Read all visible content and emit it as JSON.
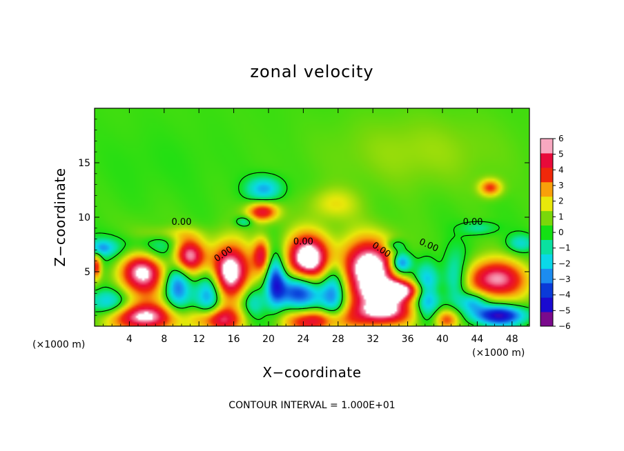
{
  "chart_data": {
    "type": "heatmap",
    "title": "zonal velocity",
    "xlabel": "X−coordinate",
    "ylabel": "Z−coordinate",
    "x_unit_left": "(×1000 m)",
    "x_unit_right": "(×1000 m)",
    "footer": "CONTOUR INTERVAL = 1.000E+01",
    "xlim": [
      0,
      50
    ],
    "ylim": [
      0,
      20
    ],
    "x_ticks": [
      4,
      8,
      12,
      16,
      20,
      24,
      28,
      32,
      36,
      40,
      44,
      48
    ],
    "y_ticks": [
      5,
      10,
      15
    ],
    "colorbar": {
      "ticks": [
        "6",
        "5",
        "4",
        "3",
        "2",
        "1",
        "0",
        "−1",
        "−2",
        "−3",
        "−4",
        "−5",
        "−6"
      ],
      "vmin": -6,
      "vmax": 6,
      "colors": [
        "#7a0a8c",
        "#1a0ad0",
        "#0a3ad8",
        "#1c8cf0",
        "#0ad8e8",
        "#0ae0a0",
        "#14e014",
        "#7ad80a",
        "#e8e80a",
        "#f8a00a",
        "#f0280a",
        "#e80a3a",
        "#f8a8c0"
      ],
      "background_value": 0.4
    },
    "contour_labels": [
      {
        "text": "0.00",
        "x": 10,
        "z": 9.3,
        "angle": 0
      },
      {
        "text": "0.00",
        "x": 15,
        "z": 6.4,
        "angle": -34
      },
      {
        "text": "0.00",
        "x": 24,
        "z": 7.5,
        "angle": 0
      },
      {
        "text": "0.00",
        "x": 32.8,
        "z": 6.8,
        "angle": 34
      },
      {
        "text": "0.00",
        "x": 38.3,
        "z": 7.2,
        "angle": 24
      },
      {
        "text": "0.00",
        "x": 43.5,
        "z": 9.3,
        "angle": 0
      }
    ],
    "field_features": [
      {
        "x": 5.5,
        "z": 5.5,
        "rx": 2.8,
        "rz": 2.6,
        "v": 7
      },
      {
        "x": 6.0,
        "z": 7.0,
        "rx": 4.2,
        "rz": 1.6,
        "v": -4.5
      },
      {
        "x": 5.5,
        "z": 0.8,
        "rx": 3.5,
        "rz": 1.3,
        "v": 6
      },
      {
        "x": 1.5,
        "z": 2.2,
        "rx": 2.2,
        "rz": 1.2,
        "v": -3
      },
      {
        "x": 10.7,
        "z": 6.5,
        "rx": 2.0,
        "rz": 1.7,
        "v": 6.5
      },
      {
        "x": 9.5,
        "z": 3.8,
        "rx": 1.5,
        "rz": 2.2,
        "v": -4
      },
      {
        "x": 13.2,
        "z": 3.0,
        "rx": 1.5,
        "rz": 2.4,
        "v": -4.5
      },
      {
        "x": 15.5,
        "z": 5.0,
        "rx": 2.4,
        "rz": 2.6,
        "v": 7
      },
      {
        "x": 14.0,
        "z": 0.6,
        "rx": 3.0,
        "rz": 1.2,
        "v": 5
      },
      {
        "x": 19.2,
        "z": 6.5,
        "rx": 1.0,
        "rz": 1.6,
        "v": 4
      },
      {
        "x": 20.8,
        "z": 4.2,
        "rx": 1.1,
        "rz": 2.4,
        "v": -4.5
      },
      {
        "x": 18.2,
        "z": 2.2,
        "rx": 1.3,
        "rz": 1.5,
        "v": -2
      },
      {
        "x": 19.3,
        "z": 10.5,
        "rx": 1.8,
        "rz": 0.9,
        "v": 4.5
      },
      {
        "x": 19.5,
        "z": 12.6,
        "rx": 2.0,
        "rz": 1.1,
        "v": -3
      },
      {
        "x": 17.2,
        "z": 9.6,
        "rx": 1.0,
        "rz": 0.5,
        "v": -2
      },
      {
        "x": 24.5,
        "z": 6.2,
        "rx": 2.6,
        "rz": 2.3,
        "v": 7
      },
      {
        "x": 23.5,
        "z": 3.2,
        "rx": 2.6,
        "rz": 1.6,
        "v": -5
      },
      {
        "x": 27.5,
        "z": 3.2,
        "rx": 1.5,
        "rz": 2.8,
        "v": -4.5
      },
      {
        "x": 25.5,
        "z": 0.5,
        "rx": 3.5,
        "rz": 1.1,
        "v": 5
      },
      {
        "x": 31.5,
        "z": 5.2,
        "rx": 3.5,
        "rz": 2.8,
        "v": 7
      },
      {
        "x": 33.0,
        "z": 1.4,
        "rx": 3.5,
        "rz": 1.5,
        "v": 6
      },
      {
        "x": 35.0,
        "z": 3.3,
        "rx": 3.5,
        "rz": 0.9,
        "v": 5
      },
      {
        "x": 35.2,
        "z": 5.8,
        "rx": 1.2,
        "rz": 1.0,
        "v": -5
      },
      {
        "x": 38.2,
        "z": 3.2,
        "rx": 1.4,
        "rz": 2.4,
        "v": -4
      },
      {
        "x": 41.5,
        "z": 4.2,
        "rx": 1.5,
        "rz": 2.5,
        "v": -3
      },
      {
        "x": 40.5,
        "z": 0.6,
        "rx": 1.5,
        "rz": 1.0,
        "v": 4
      },
      {
        "x": 46.0,
        "z": 4.3,
        "rx": 3.8,
        "rz": 1.8,
        "v": 5.5
      },
      {
        "x": 46.5,
        "z": 1.0,
        "rx": 3.2,
        "rz": 0.9,
        "v": -5.5
      },
      {
        "x": 43.5,
        "z": 2.2,
        "rx": 1.5,
        "rz": 0.9,
        "v": -3
      },
      {
        "x": 44.2,
        "z": 9.0,
        "rx": 2.0,
        "rz": 0.6,
        "v": -1.5
      },
      {
        "x": 49.0,
        "z": 7.6,
        "rx": 1.5,
        "rz": 0.8,
        "v": -2
      },
      {
        "x": 45.5,
        "z": 12.7,
        "rx": 1.3,
        "rz": 0.8,
        "v": 3.5
      },
      {
        "x": 34.5,
        "z": 7.4,
        "rx": 1.2,
        "rz": 0.6,
        "v": -2
      },
      {
        "x": 0.8,
        "z": 7.2,
        "rx": 1.5,
        "rz": 0.7,
        "v": -2.5
      },
      {
        "x": 0.2,
        "z": 5.5,
        "rx": 0.6,
        "rz": 1.2,
        "v": 4
      },
      {
        "x": 27.5,
        "z": 11.2,
        "rx": 3.0,
        "rz": 1.5,
        "v": 1.6
      },
      {
        "x": 7.0,
        "z": 15.0,
        "rx": 7.0,
        "rz": 3.0,
        "v": -0.2
      },
      {
        "x": 37.0,
        "z": 16.0,
        "rx": 10.0,
        "rz": 3.5,
        "v": 0.9
      },
      {
        "x": 8.5,
        "z": 8.5,
        "rx": 3.5,
        "rz": 0.7,
        "v": 1.2
      }
    ]
  }
}
